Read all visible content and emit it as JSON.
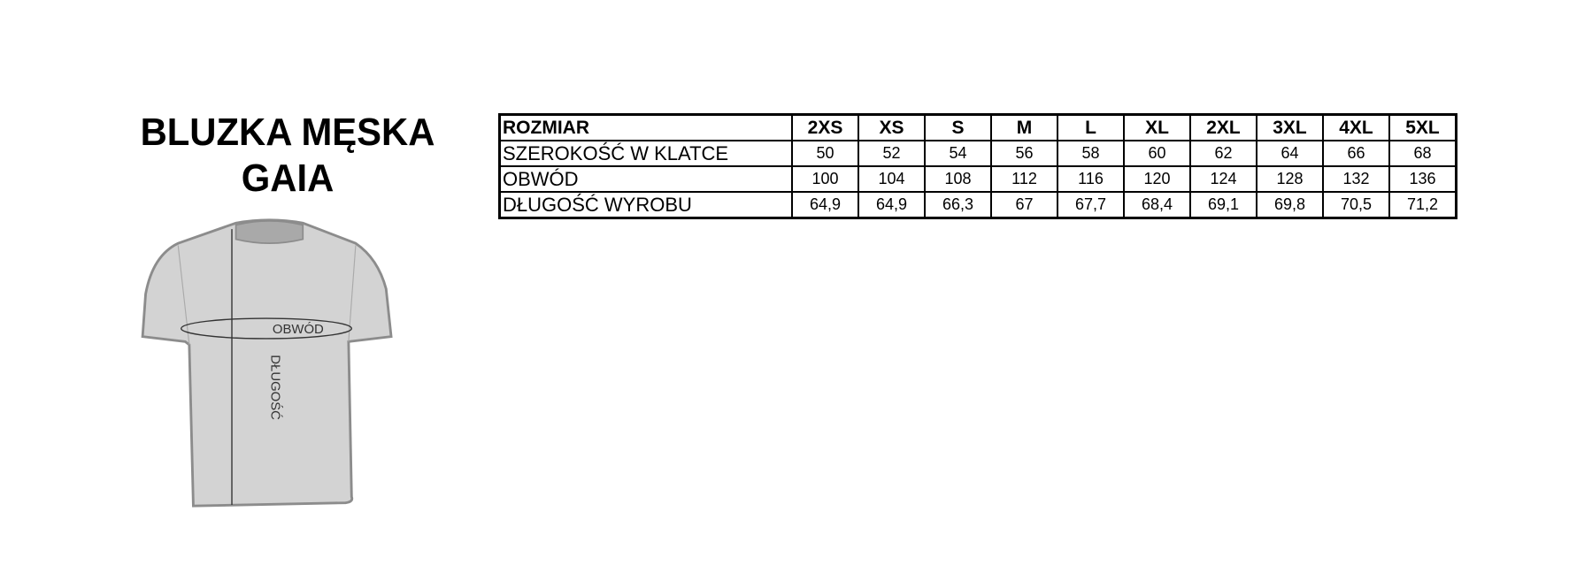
{
  "title": {
    "line1": "BLUZKA MĘSKA",
    "line2": "GAIA"
  },
  "diagram": {
    "girth_label": "OBWÓD",
    "length_label": "DŁUGOŚĆ",
    "shirt_color": "#d3d3d3",
    "outline_color": "#8c8c8c"
  },
  "table": {
    "header_label": "ROZMIAR",
    "sizes": [
      "2XS",
      "XS",
      "S",
      "M",
      "L",
      "XL",
      "2XL",
      "3XL",
      "4XL",
      "5XL"
    ],
    "rows": [
      {
        "label": "SZEROKOŚĆ W KLATCE",
        "values": [
          "50",
          "52",
          "54",
          "56",
          "58",
          "60",
          "62",
          "64",
          "66",
          "68"
        ]
      },
      {
        "label": "OBWÓD",
        "values": [
          "100",
          "104",
          "108",
          "112",
          "116",
          "120",
          "124",
          "128",
          "132",
          "136"
        ]
      },
      {
        "label": "DŁUGOŚĆ WYROBU",
        "values": [
          "64,9",
          "64,9",
          "66,3",
          "67",
          "67,7",
          "68,4",
          "69,1",
          "69,8",
          "70,5",
          "71,2"
        ]
      }
    ]
  }
}
